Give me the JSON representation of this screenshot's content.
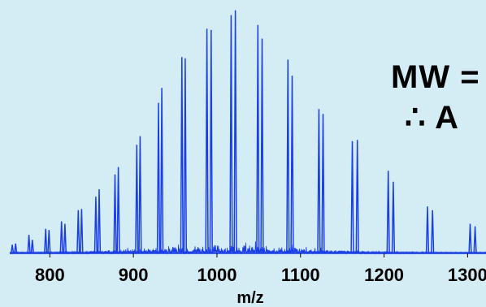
{
  "chart_data": {
    "type": "line",
    "title": "",
    "xlabel": "m/z",
    "ylabel": "",
    "xlim": [
      752,
      1322
    ],
    "ylim": [
      0,
      100
    ],
    "x_ticks": [
      800,
      900,
      1000,
      1100,
      1200,
      1300
    ],
    "x_tick_labels": [
      "800",
      "900",
      "1000",
      "1100",
      "1200",
      "1300"
    ],
    "grid": false,
    "legend": "none",
    "line_color": "#1a3fe6",
    "peaks": [
      {
        "mz": 755,
        "intensity": 3.5
      },
      {
        "mz": 759,
        "intensity": 4.0
      },
      {
        "mz": 775,
        "intensity": 7.5
      },
      {
        "mz": 779,
        "intensity": 5.5
      },
      {
        "mz": 795,
        "intensity": 10.0
      },
      {
        "mz": 799,
        "intensity": 9.5
      },
      {
        "mz": 814,
        "intensity": 13.0
      },
      {
        "mz": 818,
        "intensity": 12.0
      },
      {
        "mz": 834,
        "intensity": 17.5
      },
      {
        "mz": 838,
        "intensity": 18.0
      },
      {
        "mz": 855,
        "intensity": 23.0
      },
      {
        "mz": 859,
        "intensity": 26.0
      },
      {
        "mz": 878,
        "intensity": 32.0
      },
      {
        "mz": 882,
        "intensity": 35.0
      },
      {
        "mz": 904,
        "intensity": 44.0
      },
      {
        "mz": 908,
        "intensity": 47.5
      },
      {
        "mz": 930,
        "intensity": 61.0
      },
      {
        "mz": 934,
        "intensity": 67.0
      },
      {
        "mz": 958,
        "intensity": 79.5
      },
      {
        "mz": 962,
        "intensity": 79.0
      },
      {
        "mz": 988,
        "intensity": 91.0
      },
      {
        "mz": 993,
        "intensity": 90.5
      },
      {
        "mz": 1017,
        "intensity": 96.5
      },
      {
        "mz": 1022,
        "intensity": 98.5
      },
      {
        "mz": 1049,
        "intensity": 92.5
      },
      {
        "mz": 1054,
        "intensity": 87.0
      },
      {
        "mz": 1085,
        "intensity": 78.5
      },
      {
        "mz": 1090,
        "intensity": 72.0
      },
      {
        "mz": 1122,
        "intensity": 58.5
      },
      {
        "mz": 1127,
        "intensity": 56.5
      },
      {
        "mz": 1162,
        "intensity": 45.5
      },
      {
        "mz": 1168,
        "intensity": 46.0
      },
      {
        "mz": 1205,
        "intensity": 33.5
      },
      {
        "mz": 1211,
        "intensity": 29.0
      },
      {
        "mz": 1252,
        "intensity": 19.0
      },
      {
        "mz": 1258,
        "intensity": 17.5
      },
      {
        "mz": 1303,
        "intensity": 12.0
      },
      {
        "mz": 1309,
        "intensity": 11.0
      }
    ]
  },
  "annotations": {
    "mw_text": "MW =",
    "therefore_text": "∴  A"
  }
}
